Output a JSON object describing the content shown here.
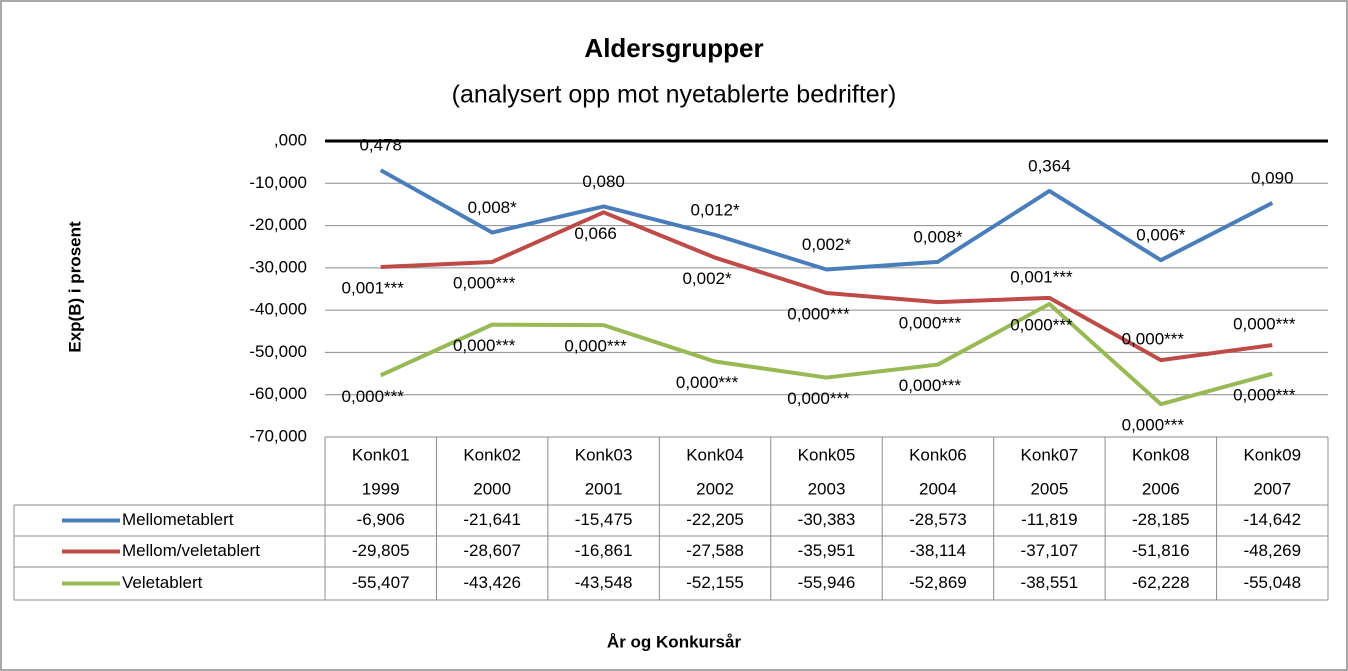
{
  "chart_data": {
    "type": "line",
    "title": "Aldersgrupper",
    "subtitle": "(analysert opp mot nyetablerte bedrifter)",
    "y_label": "Exp(B) i prosent",
    "x_label": "År og Konkursår",
    "categories": [
      [
        "Konk01",
        "1999"
      ],
      [
        "Konk02",
        "2000"
      ],
      [
        "Konk03",
        "2001"
      ],
      [
        "Konk04",
        "2002"
      ],
      [
        "Konk05",
        "2003"
      ],
      [
        "Konk06",
        "2004"
      ],
      [
        "Konk07",
        "2005"
      ],
      [
        "Konk08",
        "2006"
      ],
      [
        "Konk09",
        "2007"
      ]
    ],
    "ylim": [
      -70,
      0
    ],
    "yticks": [
      {
        "value": 0,
        "label": ",000"
      },
      {
        "value": -10,
        "label": "-10,000"
      },
      {
        "value": -20,
        "label": "-20,000"
      },
      {
        "value": -30,
        "label": "-30,000"
      },
      {
        "value": -40,
        "label": "-40,000"
      },
      {
        "value": -50,
        "label": "-50,000"
      },
      {
        "value": -60,
        "label": "-60,000"
      },
      {
        "value": -70,
        "label": "-70,000"
      }
    ],
    "grid": true,
    "series": [
      {
        "name": "Mellometablert",
        "color": "#4a7ebb",
        "values": [
          -6.906,
          -21.641,
          -15.475,
          -22.205,
          -30.383,
          -28.573,
          -11.819,
          -28.185,
          -14.642
        ],
        "value_labels": [
          "-6,906",
          "-21,641",
          "-15,475",
          "-22,205",
          "-30,383",
          "-28,573",
          "-11,819",
          "-28,185",
          "-14,642"
        ],
        "point_labels": [
          "0,478",
          "0,008*",
          "0,080",
          "0,012*",
          "0,002*",
          "0,008*",
          "0,364",
          "0,006*",
          "0,090"
        ]
      },
      {
        "name": "Mellom/veletablert",
        "color": "#be4b48",
        "values": [
          -29.805,
          -28.607,
          -16.861,
          -27.588,
          -35.951,
          -38.114,
          -37.107,
          -51.816,
          -48.269
        ],
        "value_labels": [
          "-29,805",
          "-28,607",
          "-16,861",
          "-27,588",
          "-35,951",
          "-38,114",
          "-37,107",
          "-51,816",
          "-48,269"
        ],
        "point_labels": [
          "0,001***",
          "0,000***",
          "0,066",
          "0,002*",
          "0,000***",
          "0,000***",
          "0,001***",
          "0,000***",
          "0,000***"
        ]
      },
      {
        "name": "Veletablert",
        "color": "#98b954",
        "values": [
          -55.407,
          -43.426,
          -43.548,
          -52.155,
          -55.946,
          -52.869,
          -38.551,
          -62.228,
          -55.048
        ],
        "value_labels": [
          "-55,407",
          "-43,426",
          "-43,548",
          "-52,155",
          "-55,946",
          "-52,869",
          "-38,551",
          "-62,228",
          "-55,048"
        ],
        "point_labels": [
          "0,000***",
          "0,000***",
          "0,000***",
          "0,000***",
          "0,000***",
          "0,000***",
          "0,000***",
          "0,000***",
          "0,000***"
        ]
      }
    ]
  }
}
